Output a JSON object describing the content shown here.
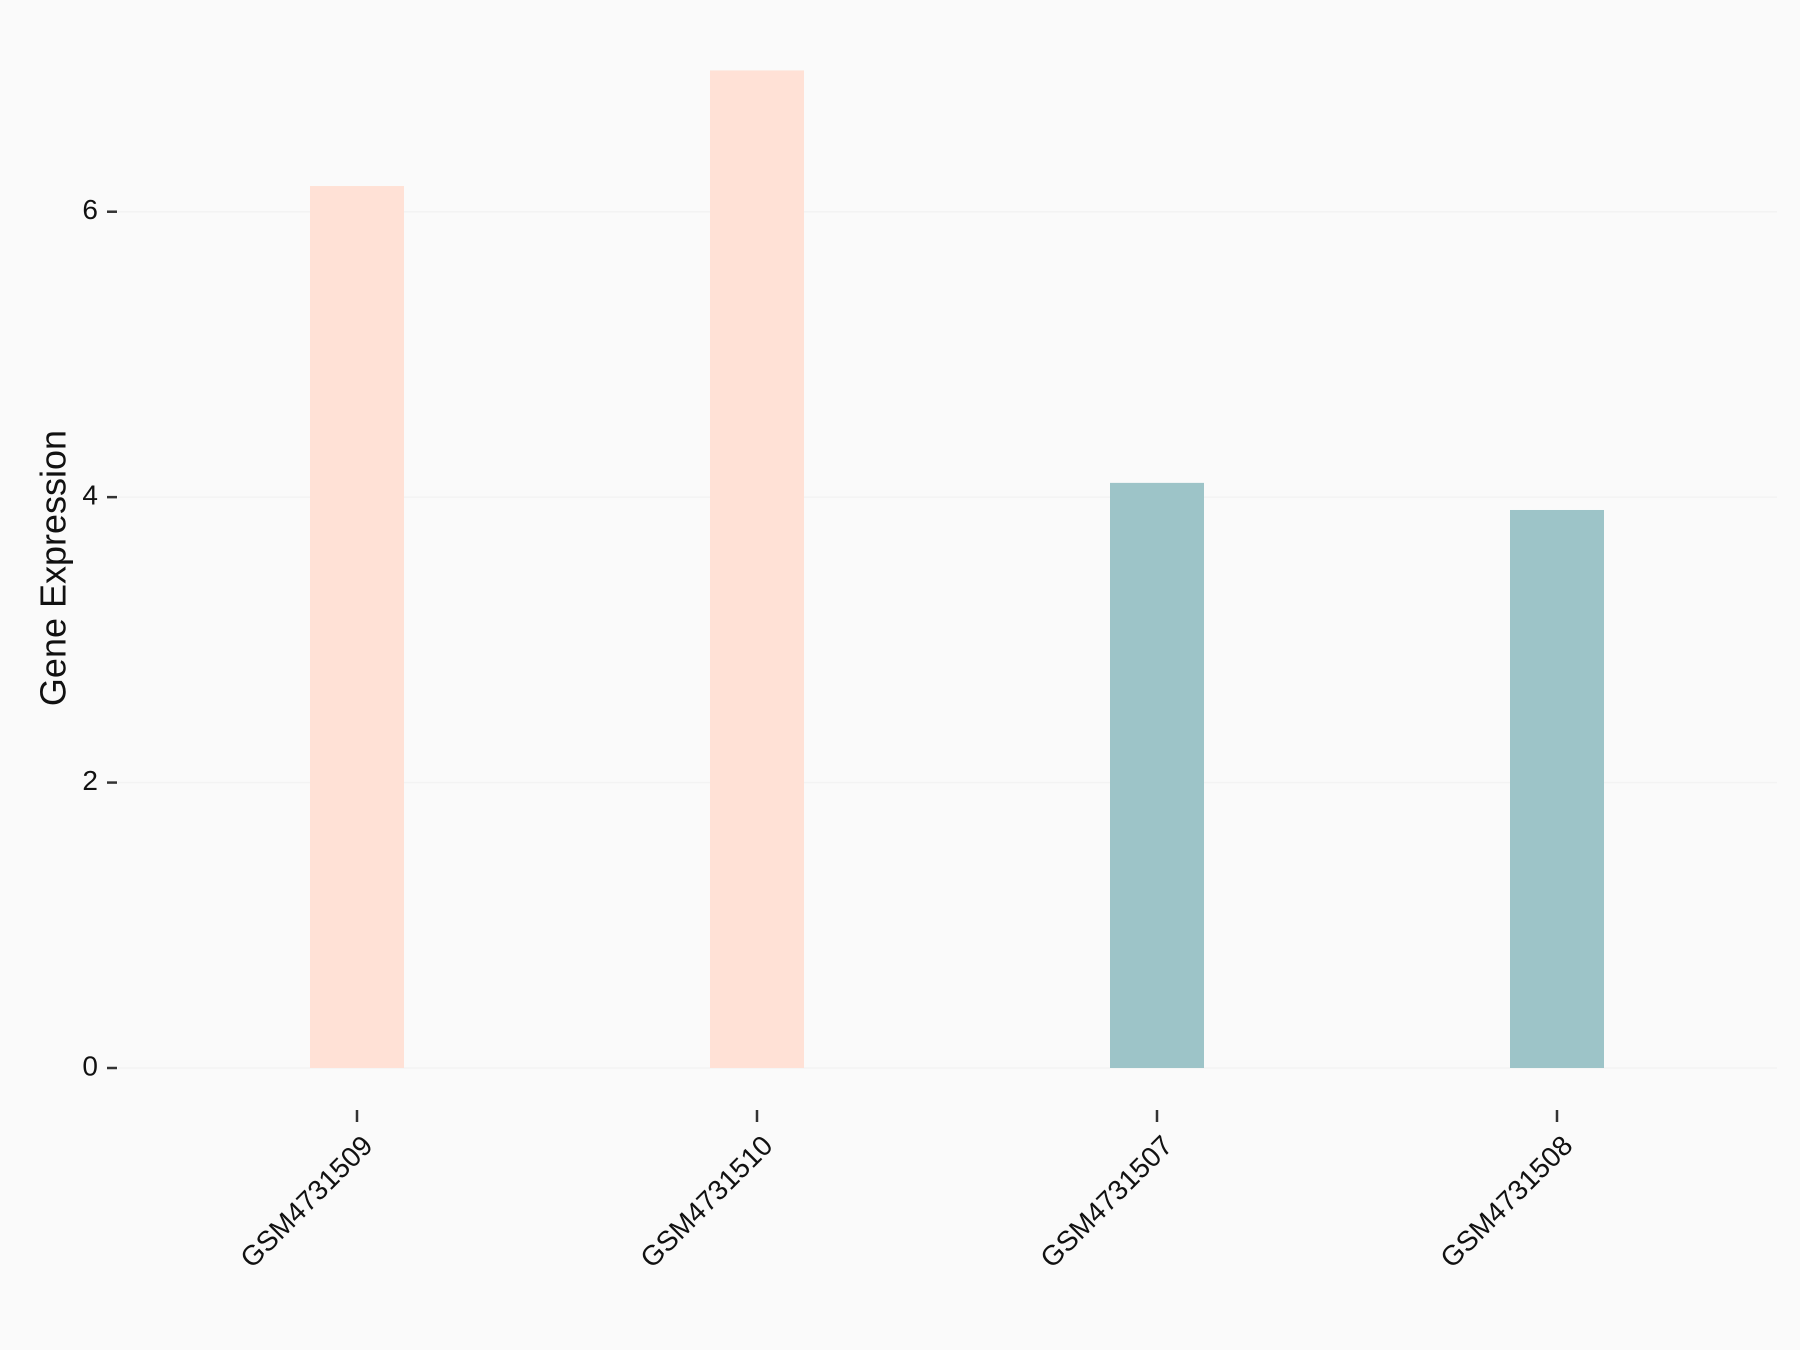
{
  "chart_data": {
    "type": "bar",
    "y_label": "Gene Expression",
    "categories": [
      "GSM4731509",
      "GSM4731510",
      "GSM4731507",
      "GSM4731508"
    ],
    "values": [
      6.18,
      6.99,
      4.1,
      3.91
    ],
    "colors": [
      "#ffe1d6",
      "#ffe1d6",
      "#9dc4c8",
      "#9dc4c8"
    ],
    "ylim": [
      0,
      7.0
    ],
    "yticks": [
      0,
      2,
      4,
      6
    ],
    "grid": true
  }
}
